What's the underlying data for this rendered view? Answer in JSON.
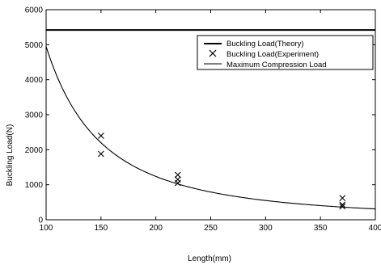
{
  "chart_data": {
    "type": "line",
    "xlabel": "Length(mm)",
    "ylabel": "Buckling Load(N)",
    "xlim": [
      100,
      400
    ],
    "ylim": [
      0,
      6000
    ],
    "x_ticks": [
      100,
      150,
      200,
      250,
      300,
      350,
      400
    ],
    "y_ticks": [
      0,
      1000,
      2000,
      3000,
      4000,
      5000,
      6000
    ],
    "grid": false,
    "legend_position": "top-right",
    "legend": [
      {
        "label": "Buckling Load(Theory)",
        "marker": "line-thick"
      },
      {
        "label": "Buckling Load(Experiment)",
        "marker": "x"
      },
      {
        "label": "Maximum Compression Load",
        "marker": "line-thin"
      }
    ],
    "series": [
      {
        "name": "Buckling Load(Theory)",
        "type": "line",
        "formula": "y = 4950 * (100 / x)^2",
        "x": [
          100,
          120,
          140,
          160,
          180,
          200,
          220,
          250,
          280,
          300,
          330,
          360,
          400
        ],
        "values": [
          4950,
          3438,
          2526,
          1934,
          1528,
          1238,
          1023,
          792,
          631,
          550,
          455,
          382,
          309
        ]
      },
      {
        "name": "Buckling Load(Experiment)",
        "type": "scatter",
        "marker": "x",
        "x": [
          150,
          150,
          220,
          220,
          220,
          370,
          370,
          370
        ],
        "values": [
          2400,
          1880,
          1280,
          1150,
          1050,
          620,
          430,
          380
        ]
      },
      {
        "name": "Maximum Compression Load",
        "type": "hline",
        "values": [
          5420
        ]
      }
    ]
  }
}
